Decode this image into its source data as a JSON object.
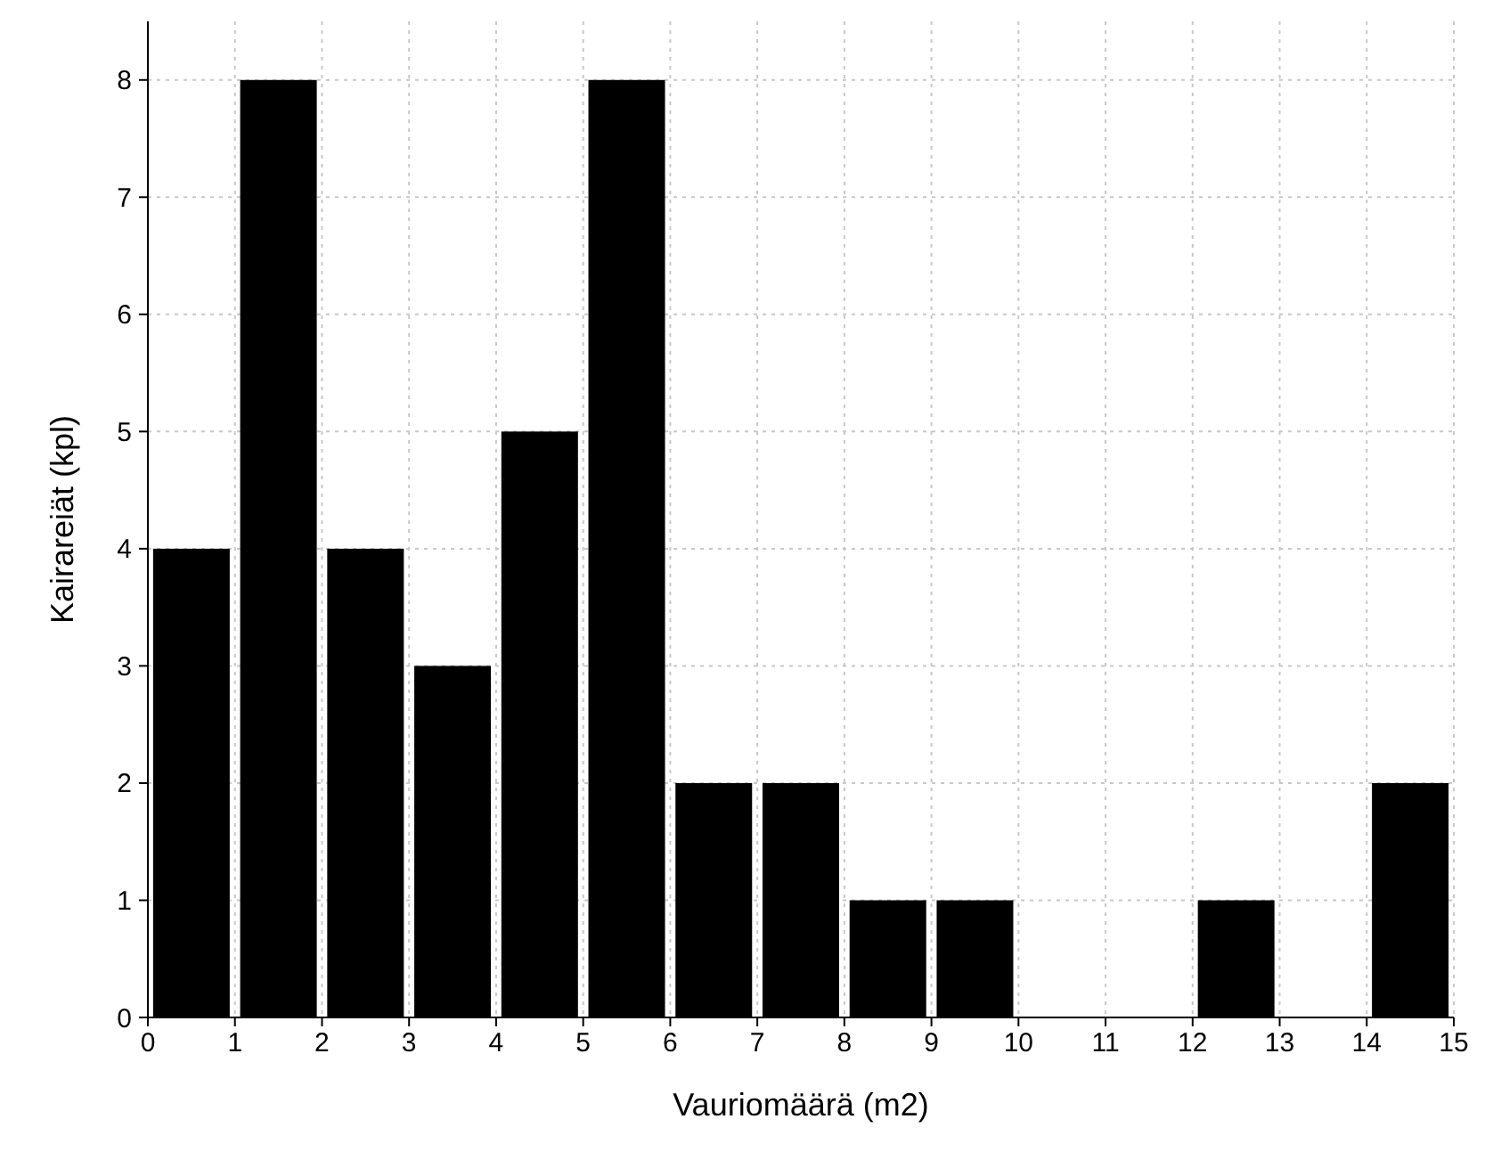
{
  "chart_data": {
    "type": "histogram",
    "xlabel": "Vauriomäärä (m2)",
    "ylabel": "Kairareiät (kpl)",
    "bins": [
      0,
      1,
      2,
      3,
      4,
      5,
      6,
      7,
      8,
      9,
      10,
      11,
      12,
      13,
      14,
      15
    ],
    "values": [
      4,
      8,
      4,
      3,
      5,
      8,
      2,
      2,
      1,
      1,
      0,
      0,
      1,
      0,
      2
    ],
    "color": "#000000",
    "xlim": [
      0,
      15
    ],
    "xticks": [
      0,
      1,
      2,
      3,
      4,
      5,
      6,
      7,
      8,
      9,
      10,
      11,
      12,
      13,
      14,
      15
    ],
    "ylim": [
      0,
      8.5
    ],
    "yticks": [
      0,
      1,
      2,
      3,
      4,
      5,
      6,
      7,
      8
    ],
    "grid": true
  }
}
